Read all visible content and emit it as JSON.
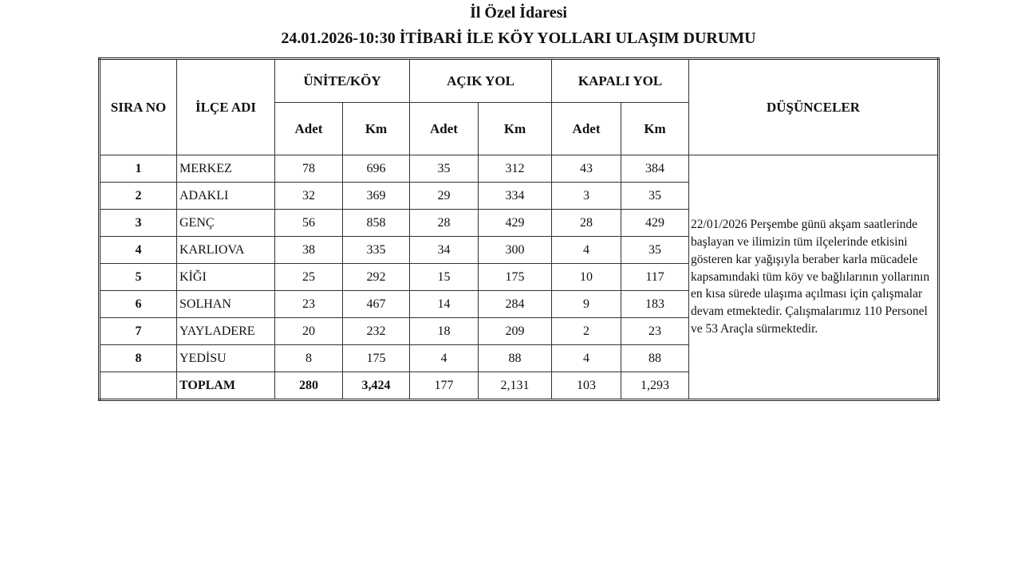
{
  "header": {
    "org": "İl Özel İdaresi",
    "title": "24.01.2026-10:30 İTİBARİ İLE KÖY YOLLARI ULAŞIM DURUMU"
  },
  "table": {
    "col_sira": "SIRA NO",
    "col_ilce": "İLÇE ADI",
    "group_unite": "ÜNİTE/KÖY",
    "group_acik": "AÇIK YOL",
    "group_kapali": "KAPALI YOL",
    "col_dusunceler": "DÜŞÜNCELER",
    "sub_adet": "Adet",
    "sub_km": "Km",
    "rows": [
      [
        "1",
        "MERKEZ",
        "78",
        "696",
        "35",
        "312",
        "43",
        "384"
      ],
      [
        "2",
        "ADAKLI",
        "32",
        "369",
        "29",
        "334",
        "3",
        "35"
      ],
      [
        "3",
        "GENÇ",
        "56",
        "858",
        "28",
        "429",
        "28",
        "429"
      ],
      [
        "4",
        "KARLIOVA",
        "38",
        "335",
        "34",
        "300",
        "4",
        "35"
      ],
      [
        "5",
        "KİĞI",
        "25",
        "292",
        "15",
        "175",
        "10",
        "117"
      ],
      [
        "6",
        "SOLHAN",
        "23",
        "467",
        "14",
        "284",
        "9",
        "183"
      ],
      [
        "7",
        "YAYLADERE",
        "20",
        "232",
        "18",
        "209",
        "2",
        "23"
      ],
      [
        "8",
        "YEDİSU",
        "8",
        "175",
        "4",
        "88",
        "4",
        "88"
      ]
    ],
    "total": [
      "",
      "TOPLAM",
      "280",
      "3,424",
      "177",
      "2,131",
      "103",
      "1,293"
    ],
    "note": "22/01/2026 Perşembe günü akşam saatlerinde başlayan ve ilimizin tüm ilçelerinde etkisini gösteren kar yağışıyla beraber karla mücadele kapsamındaki tüm köy ve bağlılarının yollarının en kısa sürede ulaşıma açılması için çalışmalar devam etmektedir. Çalışmalarımız 110 Personel ve 53 Araçla sürmektedir."
  }
}
